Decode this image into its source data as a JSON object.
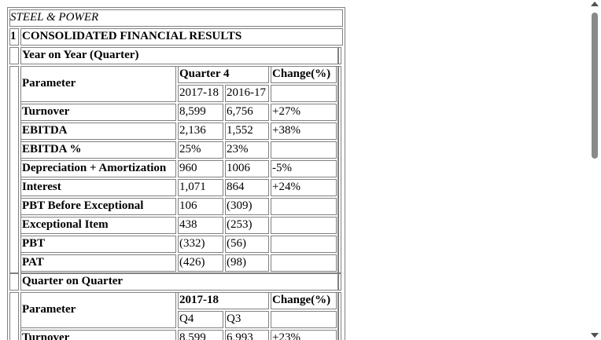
{
  "company": "STEEL & POWER",
  "section": {
    "number": "1",
    "title": "CONSOLIDATED FINANCIAL RESULTS"
  },
  "yoy": {
    "title": "Year on Year (Quarter)",
    "param_header": "Parameter",
    "group_header": "Quarter 4",
    "change_header": "Change(%)",
    "col1": "2017-18",
    "col2": "2016-17",
    "rows": [
      {
        "param": "Turnover",
        "v1": "8,599",
        "v2": "6,756",
        "change": "+27%"
      },
      {
        "param": "EBITDA",
        "v1": "2,136",
        "v2": "1,552",
        "change": "+38%"
      },
      {
        "param": "EBITDA %",
        "v1": "25%",
        "v2": "23%",
        "change": ""
      },
      {
        "param": "Depreciation + Amortization",
        "v1": "960",
        "v2": "1006",
        "change": "-5%"
      },
      {
        "param": "Interest",
        "v1": "1,071",
        "v2": "864",
        "change": "+24%"
      },
      {
        "param": "PBT Before Exceptional",
        "v1": "106",
        "v2": "(309)",
        "change": ""
      },
      {
        "param": "Exceptional Item",
        "v1": "438",
        "v2": "(253)",
        "change": ""
      },
      {
        "param": "PBT",
        "v1": "(332)",
        "v2": "(56)",
        "change": ""
      },
      {
        "param": "PAT",
        "v1": "(426)",
        "v2": "(98)",
        "change": ""
      }
    ]
  },
  "qoq": {
    "title": "Quarter on Quarter",
    "param_header": "Parameter",
    "group_header": "2017-18",
    "change_header": "Change(%)",
    "col1": "Q4",
    "col2": "Q3",
    "rows": [
      {
        "param": "Turnover",
        "v1": "8,599",
        "v2": "6,993",
        "change": "+23%"
      }
    ]
  },
  "scrollbar": {
    "icons": [
      "arrow-up-icon",
      "arrow-down-icon"
    ]
  }
}
